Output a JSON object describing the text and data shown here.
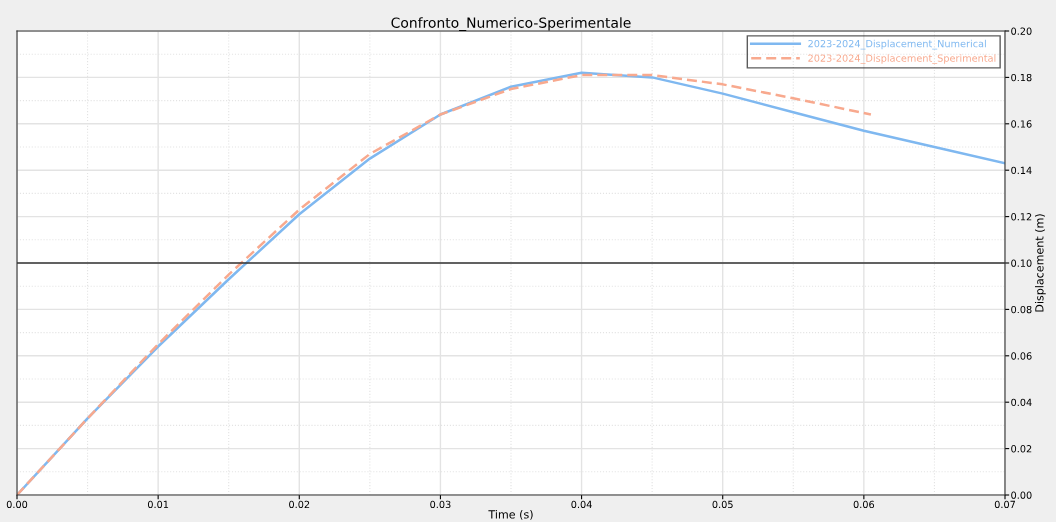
{
  "chart_data": {
    "type": "line",
    "title": "Confronto_Numerico-Sperimentale",
    "xlabel": "Time (s)",
    "ylabel": "Displacement (m)",
    "series": [
      {
        "name": "2023-2024_Displacement_Numerical",
        "color": "#7fb8f0",
        "line_style": "solid",
        "x": [
          0,
          0.005,
          0.01,
          0.015,
          0.02,
          0.025,
          0.03,
          0.035,
          0.04,
          0.045,
          0.05,
          0.055,
          0.06,
          0.065,
          0.07
        ],
        "values": [
          0,
          0.033,
          0.064,
          0.093,
          0.121,
          0.145,
          0.164,
          0.176,
          0.182,
          0.18,
          0.173,
          0.165,
          0.157,
          0.15,
          0.143
        ]
      },
      {
        "name": "2023-2024_Displacement_Sperimental",
        "color": "#f8a98e",
        "line_style": "dashed",
        "x": [
          0,
          0.005,
          0.01,
          0.015,
          0.02,
          0.025,
          0.03,
          0.035,
          0.04,
          0.045,
          0.05,
          0.055,
          0.0605
        ],
        "values": [
          0,
          0.033,
          0.065,
          0.095,
          0.123,
          0.147,
          0.164,
          0.175,
          0.181,
          0.181,
          0.177,
          0.171,
          0.164
        ]
      }
    ],
    "xlim": [
      0,
      0.07
    ],
    "ylim": [
      0,
      0.2
    ],
    "xticks": [
      {
        "value": 0,
        "label": "0.00"
      },
      {
        "value": 0.01,
        "label": "0.01"
      },
      {
        "value": 0.02,
        "label": "0.02"
      },
      {
        "value": 0.03,
        "label": "0.03"
      },
      {
        "value": 0.04,
        "label": "0.04"
      },
      {
        "value": 0.05,
        "label": "0.05"
      },
      {
        "value": 0.06,
        "label": "0.06"
      },
      {
        "value": 0.07,
        "label": "0.07"
      }
    ],
    "yticks": [
      {
        "value": 0,
        "label": "0.00"
      },
      {
        "value": 0.02,
        "label": "0.02"
      },
      {
        "value": 0.04,
        "label": "0.04"
      },
      {
        "value": 0.06,
        "label": "0.06"
      },
      {
        "value": 0.08,
        "label": "0.08"
      },
      {
        "value": 0.1,
        "label": "0.10"
      },
      {
        "value": 0.12,
        "label": "0.12"
      },
      {
        "value": 0.14,
        "label": "0.14"
      },
      {
        "value": 0.16,
        "label": "0.16"
      },
      {
        "value": 0.18,
        "label": "0.18"
      },
      {
        "value": 0.2,
        "label": "0.20"
      }
    ],
    "ref_lines": [
      {
        "axis": "y",
        "value": 0.1,
        "color": "#333333",
        "line_style": "solid"
      }
    ],
    "grid": true,
    "legend": "top right"
  }
}
